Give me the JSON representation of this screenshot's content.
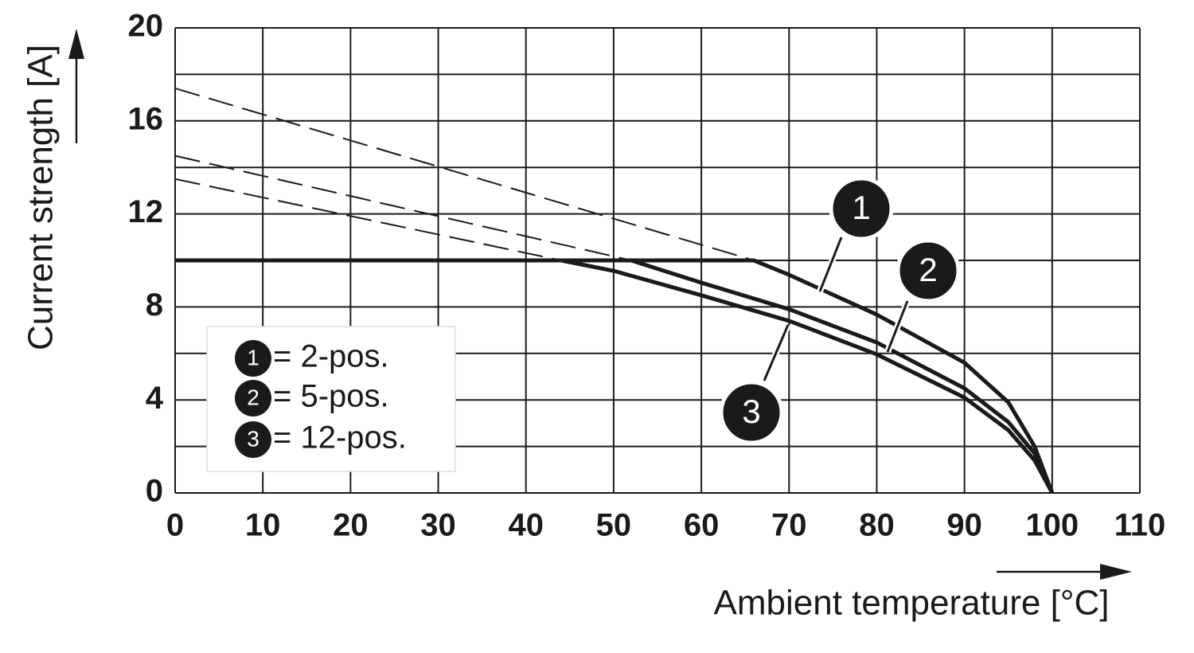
{
  "chart_data": {
    "type": "line",
    "x_label": "Ambient temperature [°C]",
    "y_label": "Current strength [A]",
    "xlim": [
      0,
      110
    ],
    "xticks": [
      0,
      10,
      20,
      30,
      40,
      50,
      60,
      70,
      80,
      90,
      100,
      110
    ],
    "ylim": [
      0,
      20
    ],
    "yticks": [
      0,
      4,
      8,
      12,
      16,
      20
    ],
    "grid": true,
    "color": "#1a1a1a",
    "series": [
      {
        "label": "1",
        "name": "= 2-pos.",
        "color": "#1a1a1a",
        "x": [
          0,
          66,
          70,
          80,
          90,
          95,
          98,
          100
        ],
        "values": [
          10,
          10,
          9.38,
          7.67,
          5.6,
          3.9,
          2.0,
          0
        ],
        "extrapolated": {
          "x": [
            0,
            66
          ],
          "values": [
            17.4,
            10
          ]
        }
      },
      {
        "label": "2",
        "name": "= 5-pos.",
        "color": "#1a1a1a",
        "x": [
          0,
          52,
          60,
          70,
          80,
          90,
          95,
          98,
          100
        ],
        "values": [
          10,
          10,
          9.04,
          7.9,
          6.47,
          4.5,
          3.05,
          1.7,
          0
        ],
        "extrapolated": {
          "x": [
            0,
            52
          ],
          "values": [
            14.5,
            10
          ]
        }
      },
      {
        "label": "3",
        "name": "= 12-pos.",
        "color": "#1a1a1a",
        "x": [
          0,
          44,
          50,
          60,
          70,
          80,
          90,
          95,
          98,
          100
        ],
        "values": [
          10,
          10,
          9.55,
          8.5,
          7.4,
          5.96,
          4.1,
          2.7,
          1.4,
          0
        ],
        "extrapolated": {
          "x": [
            0,
            44
          ],
          "values": [
            13.5,
            10
          ]
        }
      }
    ]
  }
}
